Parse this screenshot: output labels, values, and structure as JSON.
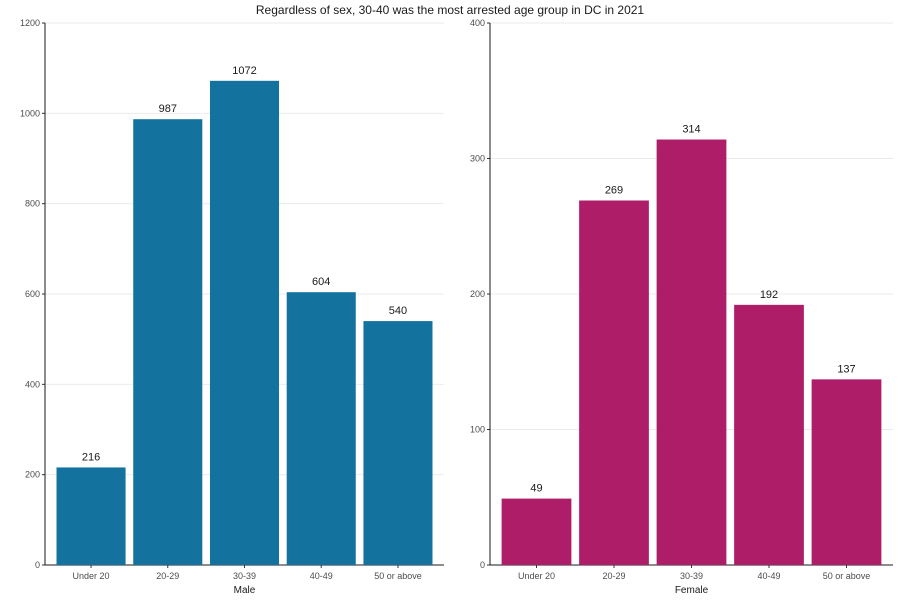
{
  "title": "Regardless of sex, 30-40 was the most arrested age group in DC in 2021",
  "colors": {
    "male": "#13729e",
    "female": "#ae1e68",
    "grid": "#ebebeb",
    "axis": "#1a1a1a"
  },
  "chart_data": [
    {
      "type": "bar",
      "title": "",
      "categories": [
        "Under 20",
        "20-29",
        "30-39",
        "40-49",
        "50 or above"
      ],
      "values": [
        216,
        987,
        1072,
        604,
        540
      ],
      "xlabel": "Male",
      "ylabel": "",
      "ylim": [
        0,
        1200
      ],
      "yticks": [
        0,
        200,
        400,
        600,
        800,
        1000,
        1200
      ],
      "grid": true,
      "color": "#13729e"
    },
    {
      "type": "bar",
      "title": "",
      "categories": [
        "Under 20",
        "20-29",
        "30-39",
        "40-49",
        "50 or above"
      ],
      "values": [
        49,
        269,
        314,
        192,
        137
      ],
      "xlabel": "Female",
      "ylabel": "",
      "ylim": [
        0,
        400
      ],
      "yticks": [
        0,
        100,
        200,
        300,
        400
      ],
      "grid": true,
      "color": "#ae1e68"
    }
  ]
}
